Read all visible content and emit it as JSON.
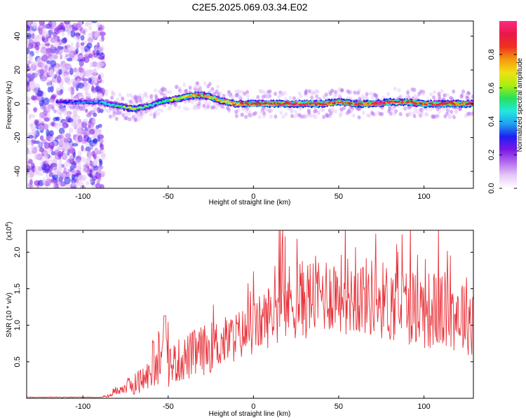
{
  "title": "C2E5.2025.069.03.34.E02",
  "colors": {
    "snr_line": "#e8333a",
    "axis": "#000000",
    "colorbar_stops": [
      "#ffffff",
      "#e6c9f7",
      "#b46cf0",
      "#7a18e6",
      "#1f1ff0",
      "#1fa0f0",
      "#22e8e0",
      "#27e05a",
      "#a8ee12",
      "#f0e012",
      "#f59a10",
      "#ee3020",
      "#e8184a",
      "#ff2a80"
    ]
  },
  "chart_data": [
    {
      "type": "heatmap",
      "title": "C2E5.2025.069.03.34.E02",
      "xlabel": "Height of straight line (km)",
      "ylabel": "Frequency (Hz)",
      "xlim": [
        -133,
        129
      ],
      "ylim": [
        -50,
        49
      ],
      "xticks": [
        -100,
        -50,
        0,
        50,
        100
      ],
      "xtick_labels": [
        "-100",
        "-50",
        "0",
        "50",
        "100"
      ],
      "yticks": [
        -40,
        -20,
        0,
        20,
        40
      ],
      "ytick_labels": [
        "-40",
        "-20",
        "0",
        "20",
        "40"
      ],
      "colorbar": {
        "label": "Normalized spectral amplitude",
        "range": [
          0,
          1
        ],
        "ticks": [
          0.0,
          0.2,
          0.4,
          0.6,
          0.8
        ],
        "tick_labels": [
          "0.0",
          "0.2",
          "0.4",
          "0.6",
          "0.8"
        ]
      },
      "noise_region_x": [
        -133,
        -88
      ],
      "ridge": {
        "x": [
          -115,
          -100,
          -90,
          -80,
          -75,
          -70,
          -65,
          -60,
          -55,
          -50,
          -45,
          -40,
          -35,
          -30,
          -25,
          -20,
          -15,
          -10,
          -5,
          0,
          10,
          20,
          30,
          40,
          50,
          60,
          70,
          80,
          90,
          100,
          110,
          120,
          129
        ],
        "freq_hz": [
          1,
          1,
          1,
          -1,
          -2,
          -3,
          -2,
          -1,
          1,
          2,
          3,
          4,
          5,
          5,
          4,
          2,
          1,
          0,
          0,
          0,
          0,
          0,
          0,
          0,
          1,
          0,
          0,
          1,
          1,
          0,
          0,
          0,
          0
        ],
        "amplitude": [
          0.3,
          0.35,
          0.4,
          0.45,
          0.55,
          0.65,
          0.55,
          0.5,
          0.5,
          0.55,
          0.65,
          0.7,
          0.75,
          0.75,
          0.7,
          0.7,
          0.7,
          0.75,
          0.85,
          0.9,
          0.9,
          0.9,
          0.9,
          0.9,
          0.85,
          0.85,
          0.9,
          0.9,
          0.85,
          0.85,
          0.85,
          0.85,
          0.85
        ]
      }
    },
    {
      "type": "line",
      "xlabel": "Height of straight line (km)",
      "ylabel": "SNR (10 * v/v)",
      "y_multiplier_label": "(x10",
      "y_multiplier_exp": "4",
      "xlim": [
        -133,
        129
      ],
      "ylim": [
        0,
        2.3
      ],
      "xticks": [
        -100,
        -50,
        0,
        50,
        100
      ],
      "xtick_labels": [
        "-100",
        "-50",
        "0",
        "50",
        "100"
      ],
      "yticks": [
        0.5,
        1.0,
        1.5,
        2.0
      ],
      "ytick_labels": [
        "0.5",
        "1.0",
        "1.5",
        "2.0"
      ],
      "series": [
        {
          "x": [
            -133,
            -120,
            -110,
            -100,
            -90,
            -85,
            -80,
            -75,
            -70,
            -65,
            -60,
            -55,
            -52,
            -50,
            -45,
            -40,
            -35,
            -30,
            -25,
            -20,
            -15,
            -10,
            -5,
            0,
            5,
            10,
            15,
            20,
            25,
            30,
            35,
            40,
            45,
            50,
            55,
            60,
            65,
            70,
            75,
            80,
            85,
            90,
            95,
            100,
            105,
            110,
            115,
            120,
            125,
            129
          ],
          "y": [
            0.01,
            0.01,
            0.01,
            0.01,
            0.02,
            0.03,
            0.12,
            0.15,
            0.2,
            0.25,
            0.35,
            0.4,
            1.13,
            0.45,
            0.5,
            0.55,
            0.6,
            0.65,
            0.7,
            0.75,
            0.8,
            0.85,
            0.9,
            0.95,
            1.05,
            1.15,
            1.25,
            1.3,
            1.35,
            1.35,
            1.4,
            1.42,
            1.45,
            1.45,
            1.42,
            1.4,
            1.4,
            1.38,
            1.35,
            1.3,
            1.3,
            1.28,
            1.25,
            1.22,
            1.2,
            1.2,
            1.18,
            1.18,
            1.15,
            1.1
          ],
          "noise_amplitude": [
            0,
            0,
            0,
            0,
            0,
            0.03,
            0.08,
            0.1,
            0.15,
            0.2,
            0.22,
            0.25,
            0,
            0.3,
            0.3,
            0.32,
            0.35,
            0.35,
            0.35,
            0.35,
            0.35,
            0.35,
            0.35,
            0.38,
            0.4,
            0.45,
            0.5,
            0.55,
            0.55,
            0.55,
            0.55,
            0.55,
            0.55,
            0.55,
            0.55,
            0.55,
            0.55,
            0.55,
            0.55,
            0.55,
            0.55,
            0.55,
            0.55,
            0.55,
            0.55,
            0.55,
            0.55,
            0.55,
            0.55,
            0.55
          ]
        }
      ]
    }
  ]
}
